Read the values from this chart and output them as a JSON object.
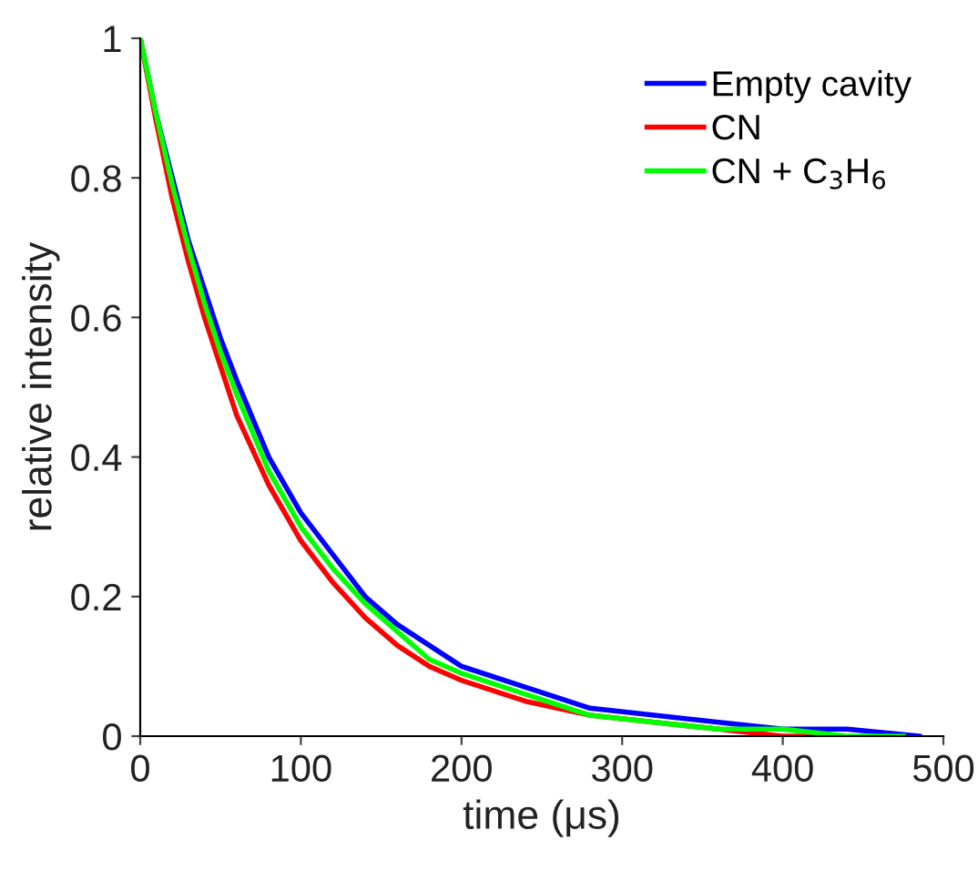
{
  "chart_data": {
    "type": "line",
    "xlabel": "time (μs)",
    "ylabel": "relative intensity",
    "xlim": [
      0,
      500
    ],
    "xticks": [
      0,
      100,
      200,
      300,
      400,
      500
    ],
    "ylim": [
      0,
      1
    ],
    "yticks": [
      0,
      0.2,
      0.4,
      0.6,
      0.8,
      1
    ],
    "grid": false,
    "legend": "top right",
    "marker": "none",
    "line_style": "solid",
    "series": [
      {
        "name": "Empty cavity",
        "color": "#0000ff",
        "x": [
          0,
          10,
          20,
          30,
          40,
          50,
          60,
          80,
          100,
          120,
          140,
          160,
          180,
          200,
          240,
          280,
          320,
          360,
          400,
          440,
          485
        ],
        "values": [
          1,
          0.89,
          0.8,
          0.71,
          0.64,
          0.57,
          0.51,
          0.4,
          0.32,
          0.26,
          0.2,
          0.16,
          0.13,
          0.1,
          0.07,
          0.04,
          0.03,
          0.02,
          0.01,
          0.01,
          0
        ]
      },
      {
        "name": "CN",
        "color": "#ff0000",
        "x": [
          0,
          10,
          20,
          30,
          40,
          50,
          60,
          80,
          100,
          120,
          140,
          160,
          180,
          200,
          240,
          280,
          320,
          360,
          400,
          425
        ],
        "values": [
          1,
          0.88,
          0.77,
          0.68,
          0.6,
          0.53,
          0.46,
          0.36,
          0.28,
          0.22,
          0.17,
          0.13,
          0.1,
          0.08,
          0.05,
          0.03,
          0.02,
          0.01,
          0,
          0
        ]
      },
      {
        "name": "CN + C$_{3}$H$_{6}$",
        "color": "#00ff00",
        "x": [
          0,
          10,
          20,
          30,
          40,
          50,
          60,
          80,
          100,
          120,
          140,
          160,
          180,
          200,
          240,
          280,
          320,
          360,
          400,
          440,
          475
        ],
        "values": [
          1,
          0.89,
          0.79,
          0.7,
          0.62,
          0.55,
          0.49,
          0.38,
          0.3,
          0.24,
          0.19,
          0.15,
          0.11,
          0.09,
          0.06,
          0.03,
          0.02,
          0.01,
          0.01,
          0,
          0
        ]
      }
    ]
  }
}
